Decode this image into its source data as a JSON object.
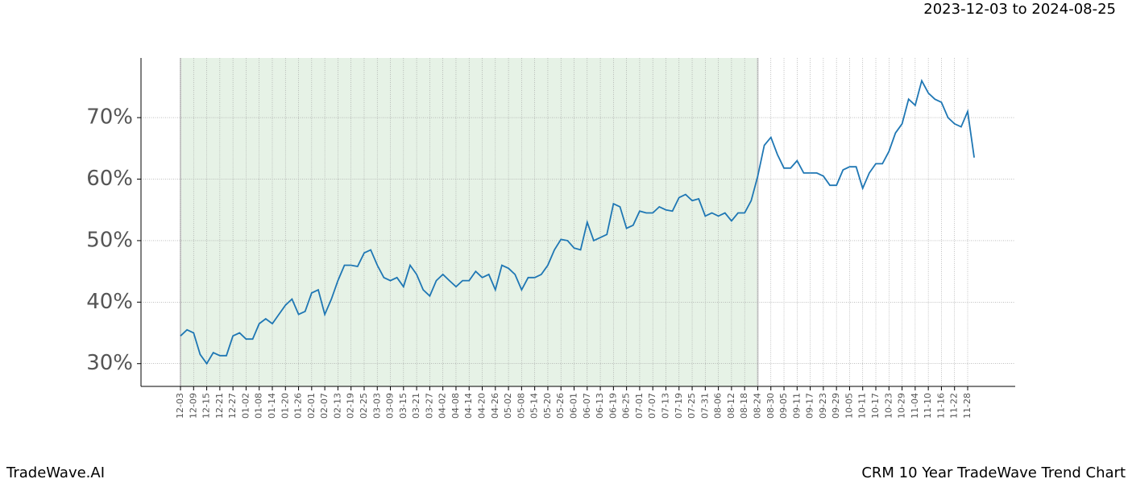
{
  "header": {
    "date_range": "2023-12-03 to 2024-08-25"
  },
  "footer": {
    "brand": "TradeWave.AI",
    "caption": "CRM 10 Year TradeWave Trend Chart"
  },
  "chart_data": {
    "type": "line",
    "categories": [
      "12-03",
      null,
      "12-09",
      null,
      "12-15",
      null,
      "12-21",
      null,
      "12-27",
      null,
      "01-02",
      null,
      "01-08",
      null,
      "01-14",
      null,
      "01-20",
      null,
      "01-26",
      null,
      "02-01",
      null,
      "02-07",
      null,
      "02-13",
      null,
      "02-19",
      null,
      "02-25",
      null,
      "03-03",
      null,
      "03-09",
      null,
      "03-15",
      null,
      "03-21",
      null,
      "03-27",
      null,
      "04-02",
      null,
      "04-08",
      null,
      "04-14",
      null,
      "04-20",
      null,
      "04-26",
      null,
      "05-02",
      null,
      "05-08",
      null,
      "05-14",
      null,
      "05-20",
      null,
      "05-26",
      null,
      "06-01",
      null,
      "06-07",
      null,
      "06-13",
      null,
      "06-19",
      null,
      "06-25",
      null,
      "07-01",
      null,
      "07-07",
      null,
      "07-13",
      null,
      "07-19",
      null,
      "07-25",
      null,
      "07-31",
      null,
      "08-06",
      null,
      "08-12",
      null,
      "08-18",
      null,
      "08-24",
      null,
      "08-30",
      null,
      "09-05",
      null,
      "09-11",
      null,
      "09-17",
      null,
      "09-23",
      null,
      "09-29",
      null,
      "10-05",
      null,
      "10-11",
      null,
      "10-17",
      null,
      "10-23",
      null,
      "10-29",
      null,
      "11-04",
      null,
      "11-10",
      null,
      "11-16",
      null,
      "11-22",
      null,
      "11-28",
      null
    ],
    "values": [
      34.5,
      35.5,
      35,
      31.5,
      30,
      31.8,
      31.3,
      31.3,
      34.5,
      35,
      34,
      34,
      36.5,
      37.3,
      36.5,
      38,
      39.5,
      40.5,
      38,
      38.5,
      41.5,
      42,
      38,
      40.5,
      43.5,
      46,
      46,
      45.8,
      48,
      48.5,
      46,
      44,
      43.5,
      44,
      42.5,
      46,
      44.5,
      42,
      41,
      43.5,
      44.5,
      43.5,
      42.5,
      43.5,
      43.5,
      45,
      44,
      44.5,
      42,
      46,
      45.5,
      44.5,
      42,
      44,
      44,
      44.5,
      46,
      48.5,
      50.2,
      50,
      48.8,
      48.5,
      53,
      50,
      50.5,
      51,
      56,
      55.5,
      52,
      52.5,
      54.8,
      54.5,
      54.5,
      55.5,
      55,
      54.8,
      57,
      57.5,
      56.5,
      56.8,
      54,
      54.5,
      54,
      54.5,
      53.2,
      54.5,
      54.5,
      56.5,
      60.5,
      65.5,
      66.8,
      64,
      61.8,
      61.8,
      63,
      61,
      61,
      61,
      60.5,
      59,
      59,
      61.5,
      62,
      62,
      58.5,
      61,
      62.5,
      62.5,
      64.5,
      67.5,
      69,
      73,
      72,
      76,
      74,
      73,
      72.5,
      70,
      69,
      68.5,
      71,
      63.5
    ],
    "color": "#1f77b4",
    "ylim": [
      26.3,
      79.7
    ],
    "yticks": [
      {
        "value": 30,
        "label": "30%"
      },
      {
        "value": 40,
        "label": "40%"
      },
      {
        "value": 50,
        "label": "50%"
      },
      {
        "value": 60,
        "label": "60%"
      },
      {
        "value": 70,
        "label": "70%"
      }
    ],
    "grid": true,
    "shade": {
      "from": "12-03",
      "to": "08-24",
      "color": "#e6f2e6"
    }
  }
}
